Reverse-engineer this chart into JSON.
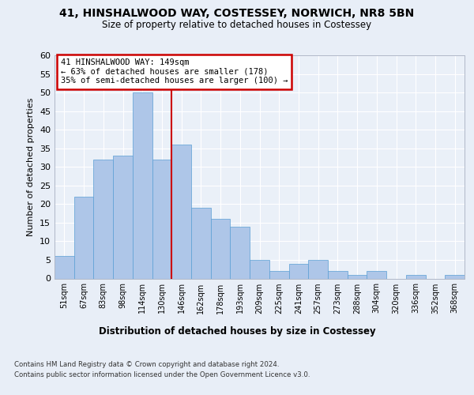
{
  "title": "41, HINSHALWOOD WAY, COSTESSEY, NORWICH, NR8 5BN",
  "subtitle": "Size of property relative to detached houses in Costessey",
  "xlabel": "Distribution of detached houses by size in Costessey",
  "ylabel": "Number of detached properties",
  "categories": [
    "51sqm",
    "67sqm",
    "83sqm",
    "98sqm",
    "114sqm",
    "130sqm",
    "146sqm",
    "162sqm",
    "178sqm",
    "193sqm",
    "209sqm",
    "225sqm",
    "241sqm",
    "257sqm",
    "273sqm",
    "288sqm",
    "304sqm",
    "320sqm",
    "336sqm",
    "352sqm",
    "368sqm"
  ],
  "values": [
    6,
    22,
    32,
    33,
    50,
    32,
    36,
    19,
    16,
    14,
    5,
    2,
    4,
    5,
    2,
    1,
    2,
    0,
    1,
    0,
    1
  ],
  "bar_color": "#aec6e8",
  "bar_edge_color": "#5a9fd4",
  "vline_x": 5.5,
  "vline_color": "#cc0000",
  "annotation_lines": [
    "41 HINSHALWOOD WAY: 149sqm",
    "← 63% of detached houses are smaller (178)",
    "35% of semi-detached houses are larger (100) →"
  ],
  "annotation_box_color": "#cc0000",
  "ylim": [
    0,
    60
  ],
  "yticks": [
    0,
    5,
    10,
    15,
    20,
    25,
    30,
    35,
    40,
    45,
    50,
    55,
    60
  ],
  "background_color": "#e8eef7",
  "plot_bg_color": "#eaf0f8",
  "footer_line1": "Contains HM Land Registry data © Crown copyright and database right 2024.",
  "footer_line2": "Contains public sector information licensed under the Open Government Licence v3.0."
}
